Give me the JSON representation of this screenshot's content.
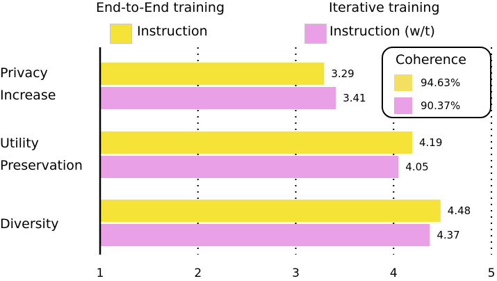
{
  "legend": {
    "group1_title": "End-to-End training",
    "group1_item": "Instruction",
    "group2_title": "Iterative training",
    "group2_item": "Instruction (w/t)"
  },
  "coherence": {
    "title": "Coherence",
    "items": [
      {
        "series": "Instruction",
        "value": "94.63%"
      },
      {
        "series": "Instruction (w/t)",
        "value": "90.37%"
      }
    ]
  },
  "category_lines": [
    [
      "Privacy",
      "Increase"
    ],
    [
      "Utility",
      "Preservation"
    ],
    [
      "Diversity"
    ]
  ],
  "colors": {
    "yellow": "#f5e337",
    "pink": "#eaa0e6",
    "coherence_yellow": "#f3e060"
  },
  "chart_data": {
    "type": "bar",
    "orientation": "horizontal",
    "categories": [
      "Privacy Increase",
      "Utility Preservation",
      "Diversity"
    ],
    "series": [
      {
        "name": "Instruction",
        "values": [
          3.29,
          4.19,
          4.48
        ]
      },
      {
        "name": "Instruction (w/t)",
        "values": [
          3.41,
          4.05,
          4.37
        ]
      }
    ],
    "xlim": [
      1,
      5
    ],
    "xticks": [
      1,
      2,
      3,
      4,
      5
    ],
    "grid": "dotted vertical",
    "title": "",
    "xlabel": "",
    "ylabel": ""
  }
}
